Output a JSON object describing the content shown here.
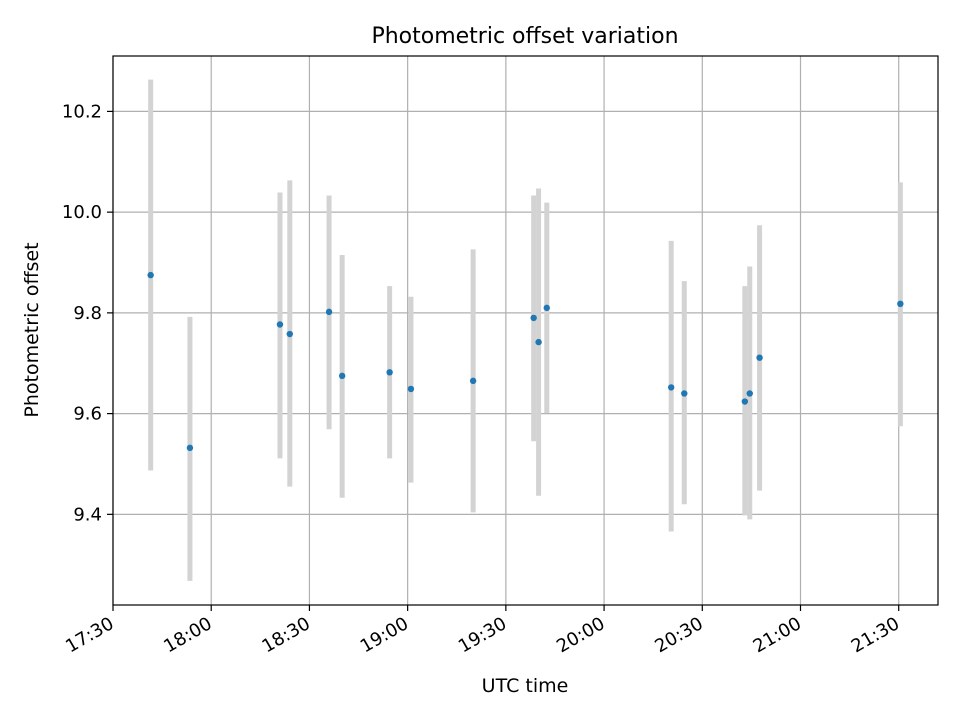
{
  "chart_data": {
    "type": "scatter",
    "title": "Photometric offset variation",
    "xlabel": "UTC time",
    "ylabel": "Photometric offset",
    "x_ticks": [
      "17:30",
      "18:00",
      "18:30",
      "19:00",
      "19:30",
      "20:00",
      "20:30",
      "21:00",
      "21:30"
    ],
    "y_ticks": [
      "9.4",
      "9.6",
      "9.8",
      "10.0",
      "10.2"
    ],
    "xlim": [
      "17:30",
      "21:42"
    ],
    "ylim": [
      9.22,
      10.31
    ],
    "grid": true,
    "marker_color": "#1f77b4",
    "errorbar_color": "#d3d3d3",
    "points": [
      {
        "x": "17:41:30",
        "y": 9.875,
        "ylow": 9.487,
        "yhigh": 10.263
      },
      {
        "x": "17:53:30",
        "y": 9.532,
        "ylow": 9.268,
        "yhigh": 9.792
      },
      {
        "x": "18:21:00",
        "y": 9.777,
        "ylow": 9.511,
        "yhigh": 10.039
      },
      {
        "x": "18:24:00",
        "y": 9.758,
        "ylow": 9.455,
        "yhigh": 10.063
      },
      {
        "x": "18:36:00",
        "y": 9.802,
        "ylow": 9.569,
        "yhigh": 10.033
      },
      {
        "x": "18:40:00",
        "y": 9.675,
        "ylow": 9.433,
        "yhigh": 9.915
      },
      {
        "x": "18:54:30",
        "y": 9.682,
        "ylow": 9.511,
        "yhigh": 9.853
      },
      {
        "x": "19:01:00",
        "y": 9.649,
        "ylow": 9.463,
        "yhigh": 9.832
      },
      {
        "x": "19:20:00",
        "y": 9.665,
        "ylow": 9.404,
        "yhigh": 9.926
      },
      {
        "x": "19:38:30",
        "y": 9.79,
        "ylow": 9.545,
        "yhigh": 10.033
      },
      {
        "x": "19:40:00",
        "y": 9.742,
        "ylow": 9.437,
        "yhigh": 10.047
      },
      {
        "x": "19:42:30",
        "y": 9.81,
        "ylow": 9.601,
        "yhigh": 10.019
      },
      {
        "x": "20:20:30",
        "y": 9.652,
        "ylow": 9.366,
        "yhigh": 9.943
      },
      {
        "x": "20:24:30",
        "y": 9.64,
        "ylow": 9.42,
        "yhigh": 9.863
      },
      {
        "x": "20:43:00",
        "y": 9.624,
        "ylow": 9.398,
        "yhigh": 9.853
      },
      {
        "x": "20:44:30",
        "y": 9.64,
        "ylow": 9.39,
        "yhigh": 9.892
      },
      {
        "x": "20:47:30",
        "y": 9.711,
        "ylow": 9.447,
        "yhigh": 9.974
      },
      {
        "x": "21:30:30",
        "y": 9.818,
        "ylow": 9.575,
        "yhigh": 10.059
      }
    ]
  }
}
